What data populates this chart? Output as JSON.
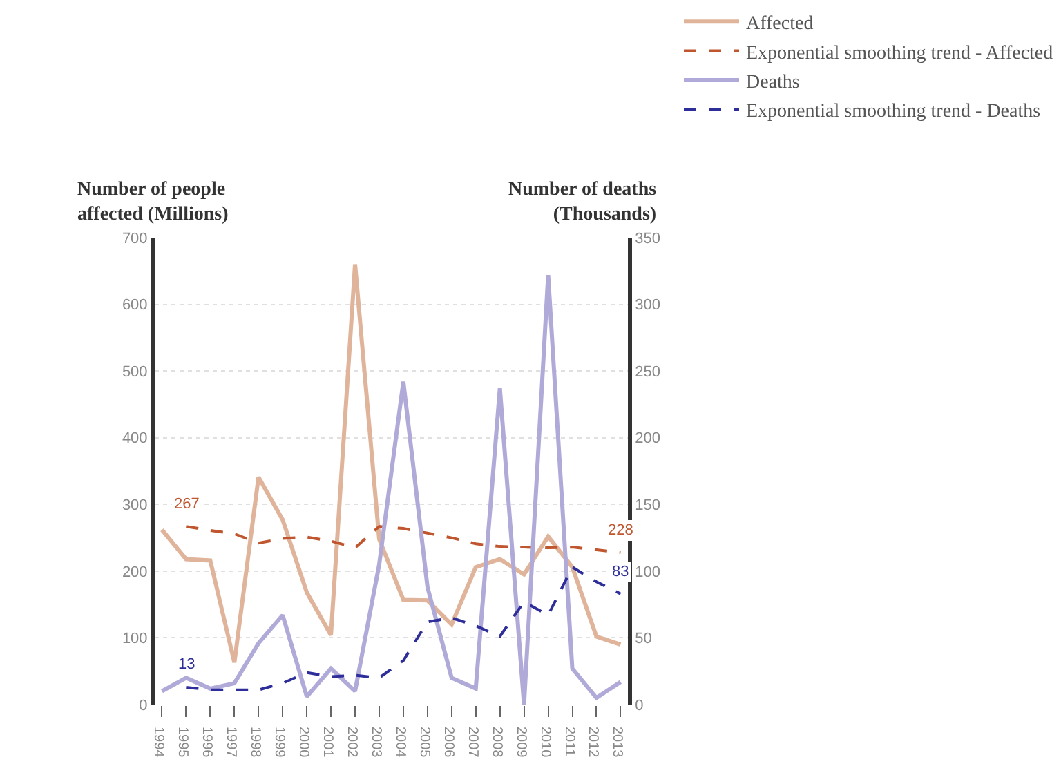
{
  "chart_data": {
    "type": "line",
    "categories": [
      "1994",
      "1995",
      "1996",
      "1997",
      "1998",
      "1999",
      "2000",
      "2001",
      "2002",
      "2003",
      "2004",
      "2005",
      "2006",
      "2007",
      "2008",
      "2009",
      "2010",
      "2011",
      "2012",
      "2013"
    ],
    "ylabel": "Number of people\naffected (Millions)",
    "y2label": "Number of deaths\n(Thousands)",
    "ylim": [
      0,
      700
    ],
    "yticks": [
      0,
      100,
      200,
      300,
      400,
      500,
      600,
      700
    ],
    "y2lim": [
      0,
      350
    ],
    "y2ticks": [
      0,
      50,
      100,
      150,
      200,
      250,
      300,
      350
    ],
    "grid": "y",
    "legend": "top right",
    "marker": "none",
    "series": [
      {
        "name": "Affected",
        "color": "#e0b49a",
        "line_style": "solid",
        "values": [
          262,
          218,
          216,
          63,
          341,
          277,
          168,
          104,
          660,
          248,
          157,
          156,
          120,
          206,
          218,
          195,
          252,
          206,
          102,
          90
        ]
      },
      {
        "name": "Exponential smoothing trend - Affected",
        "color": "#c0562e",
        "line_style": "dashed",
        "values": [
          null,
          267,
          261,
          256,
          242,
          249,
          251,
          245,
          235,
          267,
          264,
          257,
          250,
          241,
          237,
          236,
          235,
          236,
          232,
          228
        ],
        "value_labels": [
          null,
          "267",
          null,
          null,
          null,
          null,
          null,
          null,
          null,
          null,
          null,
          null,
          null,
          null,
          null,
          null,
          null,
          null,
          null,
          "228"
        ]
      },
      {
        "name": "Deaths",
        "color": "#b0aad8",
        "line_style": "solid",
        "axis": "y2",
        "values": [
          10,
          20,
          12,
          16,
          46,
          67,
          6,
          27,
          10,
          105,
          242,
          88,
          20,
          12,
          237,
          0,
          322,
          27,
          5,
          17
        ]
      },
      {
        "name": "Exponential smoothing trend - Deaths",
        "color": "#2e2e9a",
        "line_style": "dashed",
        "axis": "y2",
        "values": [
          null,
          13,
          11,
          11,
          11,
          16,
          24,
          21,
          22,
          20,
          33,
          62,
          65,
          59,
          51,
          77,
          67,
          103,
          92,
          83
        ],
        "value_labels": [
          null,
          "13",
          null,
          null,
          null,
          null,
          null,
          null,
          null,
          null,
          null,
          null,
          null,
          null,
          null,
          null,
          null,
          null,
          null,
          "83"
        ]
      }
    ]
  }
}
